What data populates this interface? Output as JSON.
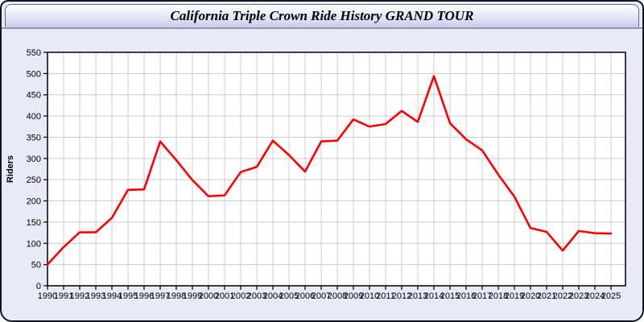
{
  "window": {
    "title": "California Triple Crown Ride History GRAND TOUR"
  },
  "colors": {
    "window_background": "#e9e9f8",
    "window_border": "#15151f",
    "titlebar_gradient_top": "#ffffff",
    "titlebar_gradient_bottom": "#c9c9e9",
    "data_line": "#ff0000"
  },
  "chart_data": {
    "type": "line",
    "title": "California Triple Crown Ride History GRAND TOUR",
    "xlabel": "",
    "ylabel": "Riders",
    "x": [
      1990,
      1991,
      1992,
      1993,
      1994,
      1995,
      1996,
      1997,
      1998,
      1999,
      2000,
      2001,
      2002,
      2003,
      2004,
      2005,
      2006,
      2007,
      2008,
      2009,
      2010,
      2011,
      2012,
      2013,
      2014,
      2015,
      2016,
      2017,
      2018,
      2019,
      2020,
      2021,
      2022,
      2023,
      2024,
      2025
    ],
    "series": [
      {
        "name": "Riders",
        "color": "#ff0000",
        "values": [
          50,
          91,
          126,
          126,
          160,
          226,
          227,
          340,
          296,
          249,
          211,
          213,
          268,
          280,
          342,
          308,
          269,
          340,
          342,
          392,
          375,
          381,
          412,
          386,
          494,
          383,
          345,
          319,
          262,
          210,
          136,
          127,
          83,
          129,
          124,
          123
        ]
      }
    ],
    "ylim": [
      0,
      550
    ],
    "yticks": [
      0,
      50,
      100,
      150,
      200,
      250,
      300,
      350,
      400,
      450,
      500,
      550
    ],
    "grid": true,
    "legend_position": "none",
    "plot_bg": "#ffffff",
    "grid_color": "#cccccc",
    "axis_color": "#000000",
    "label_color": "#000000",
    "tick_font_px": 11
  }
}
